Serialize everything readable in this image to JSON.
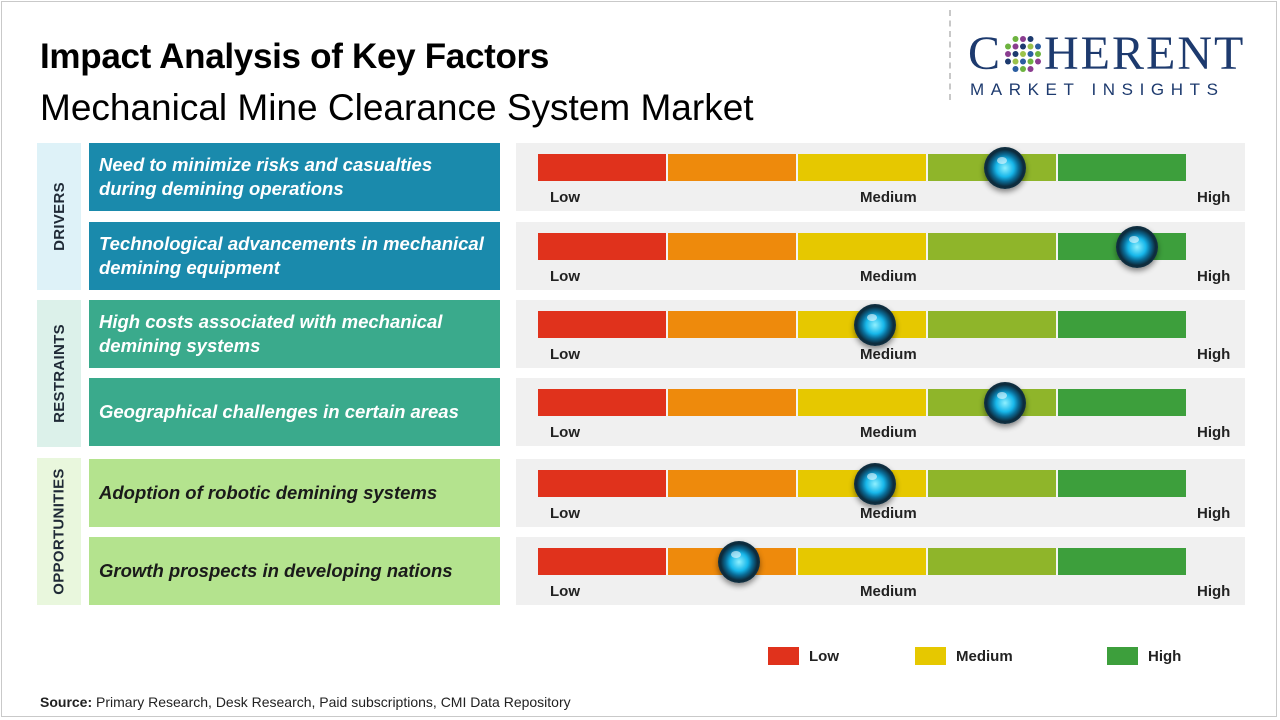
{
  "header": {
    "title": "Impact Analysis of Key Factors",
    "subtitle": "Mechanical Mine Clearance System Market"
  },
  "logo": {
    "word_left": "C",
    "word_right": "HERENT",
    "tagline": "MARKET INSIGHTS"
  },
  "colors": {
    "segments": [
      "#e0321c",
      "#ee8a0c",
      "#e6c800",
      "#8fb52a",
      "#3d9f3c"
    ],
    "drivers": "#1a8aac",
    "restraints": "#3aaa8c",
    "opportunities": "#b4e38e",
    "drivers_band": "#def2f8",
    "restraints_band": "#dcf1ea",
    "opportunities_band": "#e9f7dd",
    "legend_low": "#e0321c",
    "legend_medium": "#e6c800",
    "legend_high": "#3d9f3c"
  },
  "gauge_labels": {
    "low": "Low",
    "medium": "Medium",
    "high": "High"
  },
  "chart_data": {
    "type": "gauge",
    "scale": [
      0,
      1
    ],
    "categories": [
      {
        "name": "DRIVERS",
        "factors": [
          {
            "text": "Need to minimize risks and casualties during demining operations",
            "impact": 0.72
          },
          {
            "text": "Technological advancements in mechanical demining equipment",
            "impact": 0.925
          }
        ]
      },
      {
        "name": "RESTRAINTS",
        "factors": [
          {
            "text": "High costs associated with mechanical demining systems",
            "impact": 0.52
          },
          {
            "text": "Geographical challenges in certain areas",
            "impact": 0.72
          }
        ]
      },
      {
        "name": "OPPORTUNITIES",
        "factors": [
          {
            "text": "Adoption of robotic demining systems",
            "impact": 0.52
          },
          {
            "text": "Growth prospects in developing nations",
            "impact": 0.31
          }
        ]
      }
    ]
  },
  "legend": [
    {
      "label": "Low",
      "color": "#e0321c"
    },
    {
      "label": "Medium",
      "color": "#e6c800"
    },
    {
      "label": "High",
      "color": "#3d9f3c"
    }
  ],
  "source": {
    "label": "Source:",
    "text": " Primary Research, Desk Research, Paid subscriptions, CMI Data Repository"
  }
}
